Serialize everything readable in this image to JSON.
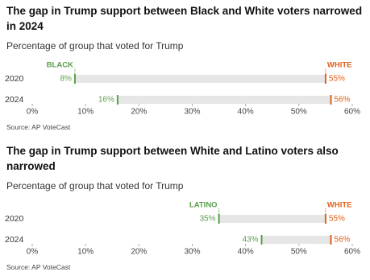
{
  "chart_data": [
    {
      "type": "range",
      "title": "The gap in Trump support between Black and White voters narrowed in 2024",
      "subtitle": "Percentage of group that voted for Trump",
      "categories": [
        "2020",
        "2024"
      ],
      "series": [
        {
          "name": "BLACK",
          "color": "#5a9e4b",
          "values": [
            8,
            16
          ],
          "value_labels": [
            "8%",
            "16%"
          ]
        },
        {
          "name": "WHITE",
          "color": "#e0601a",
          "values": [
            55,
            56
          ],
          "value_labels": [
            "55%",
            "56%"
          ]
        }
      ],
      "xlim": [
        0,
        60
      ],
      "xticks": [
        {
          "value": 0,
          "label": "0%"
        },
        {
          "value": 10,
          "label": "10%"
        },
        {
          "value": 20,
          "label": "20%"
        },
        {
          "value": 30,
          "label": "30%"
        },
        {
          "value": 40,
          "label": "40%"
        },
        {
          "value": 50,
          "label": "50%"
        },
        {
          "value": 60,
          "label": "60%"
        }
      ],
      "bar_color": "#e6e6e6",
      "source": "Source: AP VoteCast"
    },
    {
      "type": "range",
      "title": "The gap in Trump support between White and Latino voters also narrowed",
      "subtitle": "Percentage of group that voted for Trump",
      "categories": [
        "2020",
        "2024"
      ],
      "series": [
        {
          "name": "LATINO",
          "color": "#5a9e4b",
          "values": [
            35,
            43
          ],
          "value_labels": [
            "35%",
            "43%"
          ]
        },
        {
          "name": "WHITE",
          "color": "#e0601a",
          "values": [
            55,
            56
          ],
          "value_labels": [
            "55%",
            "56%"
          ]
        }
      ],
      "xlim": [
        0,
        60
      ],
      "xticks": [
        {
          "value": 0,
          "label": "0%"
        },
        {
          "value": 10,
          "label": "10%"
        },
        {
          "value": 20,
          "label": "20%"
        },
        {
          "value": 30,
          "label": "30%"
        },
        {
          "value": 40,
          "label": "40%"
        },
        {
          "value": 50,
          "label": "50%"
        },
        {
          "value": 60,
          "label": "60%"
        }
      ],
      "bar_color": "#e6e6e6",
      "source": "Source: AP VoteCast"
    }
  ]
}
